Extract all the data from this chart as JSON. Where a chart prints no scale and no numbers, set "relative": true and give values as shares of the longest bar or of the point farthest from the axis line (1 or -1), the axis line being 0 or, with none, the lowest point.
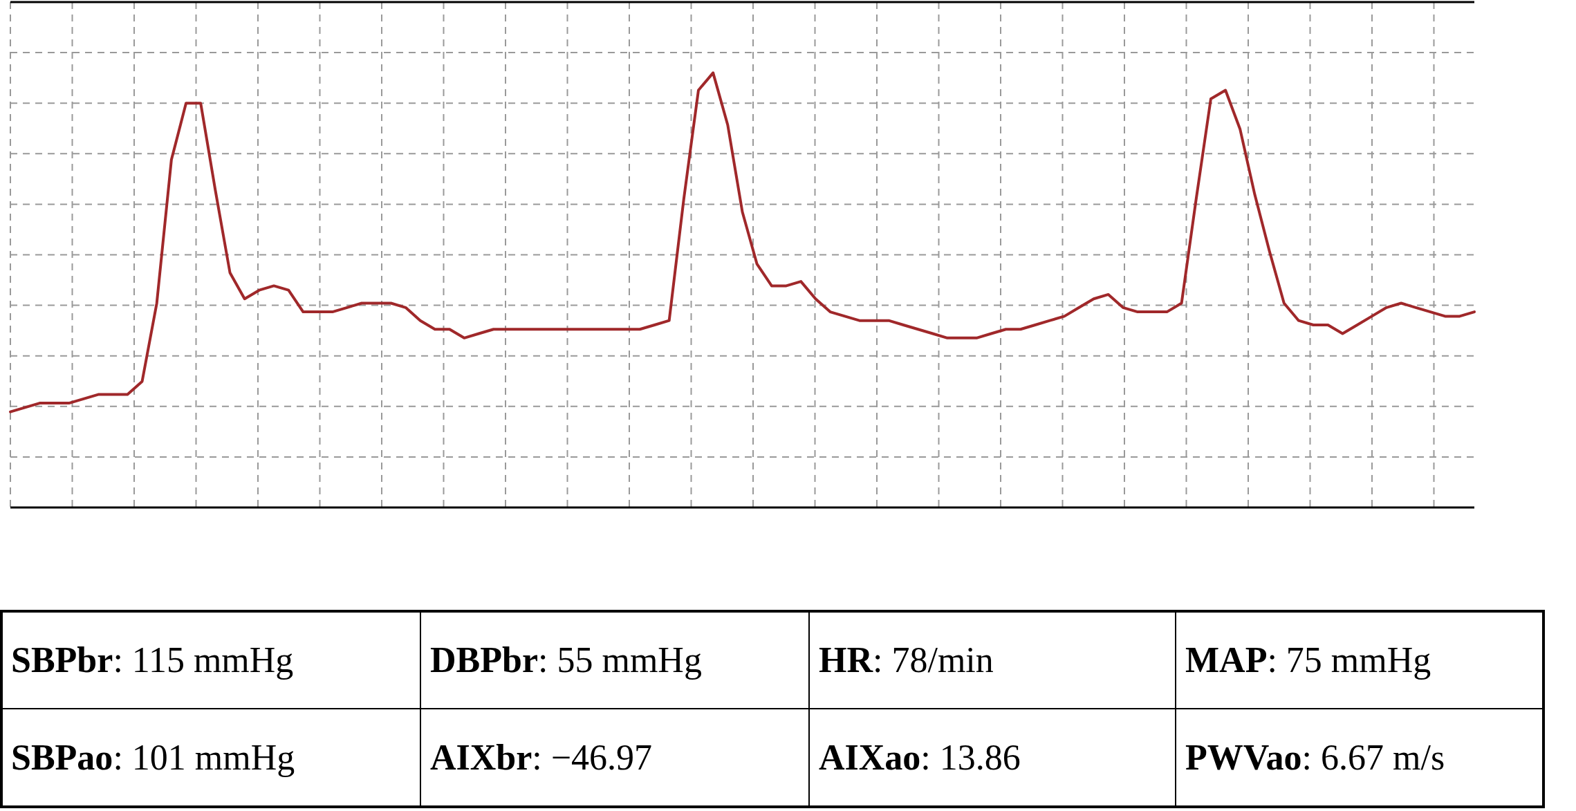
{
  "chart_data": [
    {
      "type": "line",
      "relative": true,
      "grid": true,
      "categories": [
        null,
        null,
        null,
        null,
        null,
        null,
        null,
        null,
        null,
        null,
        null,
        null,
        null,
        null,
        null,
        null,
        null,
        null,
        null,
        null,
        null,
        null,
        null,
        null,
        null,
        null,
        null,
        null,
        null,
        null,
        null,
        null,
        null,
        null,
        null,
        null,
        null,
        null,
        null,
        null,
        null,
        null,
        null,
        null,
        null,
        null,
        null,
        null,
        null,
        null,
        null,
        null,
        null,
        null,
        null,
        null,
        null,
        null,
        null,
        null,
        null,
        null,
        null,
        null,
        null,
        null,
        null,
        null,
        null,
        null,
        null,
        null,
        null,
        null,
        null,
        null,
        null,
        null,
        null,
        null,
        null,
        null,
        null,
        null,
        null,
        null,
        null,
        null,
        null,
        null,
        null,
        null,
        null,
        null,
        null,
        null,
        null,
        null,
        null,
        null,
        null
      ],
      "series": [
        {
          "color": "#a0282a",
          "values": [
            0.22,
            0.23,
            0.24,
            0.24,
            0.24,
            0.25,
            0.26,
            0.26,
            0.26,
            0.29,
            0.47,
            0.8,
            0.93,
            0.93,
            0.73,
            0.54,
            0.48,
            0.5,
            0.51,
            0.5,
            0.45,
            0.45,
            0.45,
            0.46,
            0.47,
            0.47,
            0.47,
            0.46,
            0.43,
            0.41,
            0.41,
            0.39,
            0.4,
            0.41,
            0.41,
            0.41,
            0.41,
            0.41,
            0.41,
            0.41,
            0.41,
            0.41,
            0.41,
            0.41,
            0.42,
            0.43,
            0.71,
            0.96,
            1,
            0.88,
            0.68,
            0.56,
            0.51,
            0.51,
            0.52,
            0.48,
            0.45,
            0.44,
            0.43,
            0.43,
            0.43,
            0.42,
            0.41,
            0.4,
            0.39,
            0.39,
            0.39,
            0.4,
            0.41,
            0.41,
            0.42,
            0.43,
            0.44,
            0.46,
            0.48,
            0.49,
            0.46,
            0.45,
            0.45,
            0.45,
            0.47,
            0.71,
            0.94,
            0.96,
            0.87,
            0.72,
            0.59,
            0.47,
            0.43,
            0.42,
            0.42,
            0.4,
            0.42,
            0.44,
            0.46,
            0.47,
            0.46,
            0.45,
            0.44,
            0.44,
            0.45
          ]
        }
      ]
    },
    {
      "type": "other",
      "annotations": [
        "SBPbr: 115 mmHg",
        "DBPbr: 55 mmHg",
        "HR: 78/min",
        "MAP: 75 mmHg",
        "SBPao: 101 mmHg",
        "AIXbr: −46.97",
        "AIXao: 13.86",
        "PWVao: 6.67 m/s"
      ]
    }
  ]
}
